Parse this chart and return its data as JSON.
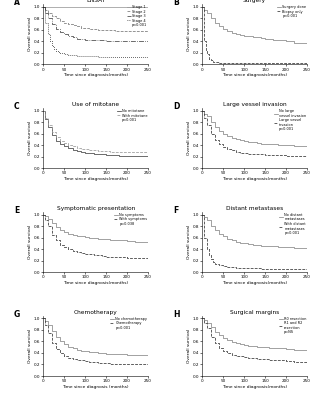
{
  "panels": [
    {
      "label": "A",
      "title": "ENSAT",
      "curves": [
        {
          "label": "Stage 1",
          "color": "#999999",
          "linestyle": "-",
          "x": [
            0,
            5,
            10,
            15,
            20,
            30,
            40,
            50,
            60,
            80,
            100,
            120,
            140,
            160,
            180,
            200,
            220,
            240,
            250
          ],
          "y": [
            1.0,
            1.0,
            1.0,
            1.0,
            1.0,
            1.0,
            1.0,
            1.0,
            1.0,
            1.0,
            1.0,
            1.0,
            1.0,
            1.0,
            1.0,
            1.0,
            1.0,
            1.0,
            1.0
          ]
        },
        {
          "label": "Stage 2",
          "color": "#777777",
          "linestyle": "--",
          "x": [
            0,
            5,
            10,
            20,
            30,
            40,
            50,
            60,
            70,
            80,
            90,
            100,
            110,
            120,
            130,
            140,
            150,
            160,
            170,
            180,
            200,
            220,
            240,
            250
          ],
          "y": [
            1.0,
            0.95,
            0.9,
            0.85,
            0.8,
            0.75,
            0.72,
            0.7,
            0.68,
            0.66,
            0.64,
            0.63,
            0.62,
            0.61,
            0.6,
            0.6,
            0.59,
            0.59,
            0.58,
            0.58,
            0.58,
            0.58,
            0.58,
            0.58
          ]
        },
        {
          "label": "Stage 3",
          "color": "#444444",
          "linestyle": "-.",
          "x": [
            0,
            5,
            10,
            20,
            30,
            40,
            50,
            60,
            70,
            80,
            90,
            100,
            110,
            120,
            130,
            140,
            150,
            160,
            170,
            180,
            200,
            220,
            240,
            250
          ],
          "y": [
            1.0,
            0.9,
            0.8,
            0.7,
            0.62,
            0.56,
            0.52,
            0.49,
            0.47,
            0.45,
            0.44,
            0.43,
            0.42,
            0.42,
            0.42,
            0.42,
            0.41,
            0.41,
            0.41,
            0.41,
            0.41,
            0.41,
            0.41,
            0.41
          ]
        },
        {
          "label": "Stage 4",
          "color": "#111111",
          "linestyle": ":",
          "x": [
            0,
            5,
            10,
            15,
            20,
            25,
            30,
            35,
            40,
            50,
            60,
            70,
            80,
            90,
            100,
            110,
            120,
            130,
            140,
            150,
            160,
            180,
            200,
            220,
            250
          ],
          "y": [
            1.0,
            0.72,
            0.52,
            0.4,
            0.32,
            0.27,
            0.24,
            0.22,
            0.2,
            0.18,
            0.17,
            0.16,
            0.15,
            0.15,
            0.14,
            0.14,
            0.14,
            0.13,
            0.13,
            0.13,
            0.13,
            0.13,
            0.13,
            0.13,
            0.13
          ]
        }
      ],
      "pval": "p<0.001",
      "xlabel": "Time since diagnosis(months)",
      "ylabel": "Overall survival"
    },
    {
      "label": "B",
      "title": "Surgery",
      "curves": [
        {
          "label": "Surgery done",
          "color": "#888888",
          "linestyle": "-",
          "x": [
            0,
            5,
            10,
            20,
            30,
            40,
            50,
            60,
            70,
            80,
            90,
            100,
            110,
            120,
            130,
            140,
            150,
            160,
            170,
            180,
            200,
            220,
            240,
            250
          ],
          "y": [
            1.0,
            0.95,
            0.9,
            0.8,
            0.72,
            0.66,
            0.62,
            0.58,
            0.55,
            0.53,
            0.51,
            0.5,
            0.49,
            0.48,
            0.47,
            0.46,
            0.45,
            0.44,
            0.43,
            0.42,
            0.4,
            0.38,
            0.38,
            0.38
          ]
        },
        {
          "label": "Biopsy only",
          "color": "#333333",
          "linestyle": "--",
          "x": [
            0,
            3,
            5,
            8,
            10,
            15,
            20,
            25,
            30,
            40,
            50,
            250
          ],
          "y": [
            1.0,
            0.6,
            0.4,
            0.25,
            0.18,
            0.1,
            0.07,
            0.05,
            0.04,
            0.03,
            0.02,
            0.02
          ]
        }
      ],
      "pval": "p<0.001",
      "xlabel": "Time since diagnosis(months)",
      "ylabel": "Overall survival"
    },
    {
      "label": "C",
      "title": "Use of mitotane",
      "curves": [
        {
          "label": "No mitotane",
          "color": "#444444",
          "linestyle": "-",
          "x": [
            0,
            5,
            10,
            20,
            30,
            40,
            50,
            60,
            70,
            80,
            90,
            100,
            110,
            120,
            130,
            140,
            150,
            160,
            170,
            180,
            200,
            220,
            250
          ],
          "y": [
            1.0,
            0.85,
            0.72,
            0.58,
            0.48,
            0.42,
            0.38,
            0.35,
            0.32,
            0.3,
            0.28,
            0.27,
            0.26,
            0.25,
            0.24,
            0.24,
            0.23,
            0.23,
            0.23,
            0.22,
            0.22,
            0.22,
            0.22
          ]
        },
        {
          "label": "With mitotane",
          "color": "#999999",
          "linestyle": "--",
          "x": [
            0,
            5,
            10,
            20,
            30,
            40,
            50,
            60,
            70,
            80,
            90,
            100,
            110,
            120,
            130,
            140,
            150,
            160,
            170,
            180,
            200,
            220,
            250
          ],
          "y": [
            1.0,
            0.88,
            0.76,
            0.63,
            0.54,
            0.48,
            0.44,
            0.4,
            0.38,
            0.36,
            0.34,
            0.33,
            0.32,
            0.31,
            0.3,
            0.3,
            0.3,
            0.29,
            0.29,
            0.29,
            0.29,
            0.29,
            0.29
          ]
        }
      ],
      "pval": "p<0.001",
      "xlabel": "Time since diagnosis(months)",
      "ylabel": "Overall survival"
    },
    {
      "label": "D",
      "title": "Large vessel invasion",
      "curves": [
        {
          "label": "No large\nvessel invasion",
          "color": "#888888",
          "linestyle": "-",
          "x": [
            0,
            5,
            10,
            20,
            30,
            40,
            50,
            60,
            70,
            80,
            90,
            100,
            110,
            120,
            130,
            140,
            150,
            160,
            180,
            200,
            220,
            250
          ],
          "y": [
            1.0,
            0.95,
            0.9,
            0.8,
            0.72,
            0.65,
            0.6,
            0.56,
            0.53,
            0.51,
            0.49,
            0.47,
            0.46,
            0.45,
            0.44,
            0.43,
            0.43,
            0.42,
            0.41,
            0.4,
            0.39,
            0.38
          ]
        },
        {
          "label": "Large vessel\ninvasion",
          "color": "#333333",
          "linestyle": "--",
          "x": [
            0,
            5,
            10,
            20,
            30,
            40,
            50,
            60,
            70,
            80,
            90,
            100,
            110,
            120,
            130,
            140,
            150,
            160,
            180,
            200,
            220,
            250
          ],
          "y": [
            1.0,
            0.88,
            0.75,
            0.6,
            0.5,
            0.42,
            0.37,
            0.34,
            0.31,
            0.29,
            0.27,
            0.26,
            0.25,
            0.24,
            0.24,
            0.24,
            0.23,
            0.23,
            0.23,
            0.22,
            0.22,
            0.22
          ]
        }
      ],
      "pval": "p<0.001",
      "xlabel": "Time since diagnosis(months)",
      "ylabel": "Overall survival"
    },
    {
      "label": "E",
      "title": "Symptomatic presentation",
      "curves": [
        {
          "label": "No symptoms",
          "color": "#888888",
          "linestyle": "-",
          "x": [
            0,
            5,
            10,
            20,
            30,
            40,
            50,
            60,
            70,
            80,
            90,
            100,
            110,
            120,
            130,
            140,
            150,
            160,
            180,
            200,
            220,
            250
          ],
          "y": [
            1.0,
            0.97,
            0.93,
            0.86,
            0.79,
            0.74,
            0.7,
            0.67,
            0.65,
            0.63,
            0.62,
            0.61,
            0.6,
            0.59,
            0.58,
            0.57,
            0.57,
            0.56,
            0.55,
            0.54,
            0.53,
            0.52
          ]
        },
        {
          "label": "With symptoms",
          "color": "#333333",
          "linestyle": "--",
          "x": [
            0,
            5,
            10,
            20,
            30,
            40,
            50,
            60,
            70,
            80,
            90,
            100,
            110,
            120,
            130,
            140,
            150,
            160,
            180,
            200,
            220,
            250
          ],
          "y": [
            1.0,
            0.9,
            0.8,
            0.65,
            0.55,
            0.48,
            0.43,
            0.4,
            0.37,
            0.35,
            0.33,
            0.32,
            0.31,
            0.3,
            0.29,
            0.28,
            0.27,
            0.27,
            0.26,
            0.25,
            0.24,
            0.23
          ]
        }
      ],
      "pval": "p=0.038",
      "xlabel": "Time since diagnosis(months)",
      "ylabel": "Overall survival"
    },
    {
      "label": "F",
      "title": "Distant metastases",
      "curves": [
        {
          "label": "No distant\nmetastases",
          "color": "#888888",
          "linestyle": "-",
          "x": [
            0,
            5,
            10,
            20,
            30,
            40,
            50,
            60,
            70,
            80,
            90,
            100,
            110,
            120,
            130,
            140,
            150,
            160,
            180,
            200,
            220,
            250
          ],
          "y": [
            1.0,
            0.95,
            0.9,
            0.81,
            0.73,
            0.67,
            0.62,
            0.58,
            0.55,
            0.53,
            0.51,
            0.5,
            0.49,
            0.48,
            0.47,
            0.46,
            0.46,
            0.45,
            0.44,
            0.43,
            0.42,
            0.41
          ]
        },
        {
          "label": "With distant\nmetastases",
          "color": "#333333",
          "linestyle": "--",
          "x": [
            0,
            3,
            5,
            10,
            15,
            20,
            25,
            30,
            40,
            50,
            60,
            80,
            100,
            120,
            140,
            160,
            180,
            200,
            250
          ],
          "y": [
            1.0,
            0.75,
            0.6,
            0.4,
            0.3,
            0.22,
            0.18,
            0.15,
            0.12,
            0.1,
            0.09,
            0.08,
            0.07,
            0.07,
            0.06,
            0.06,
            0.06,
            0.06,
            0.06
          ]
        }
      ],
      "pval": "p<0.001",
      "xlabel": "Time since diagnosis(months)",
      "ylabel": "Overall survival"
    },
    {
      "label": "G",
      "title": "Chemotherapy",
      "curves": [
        {
          "label": "No chemotherapy",
          "color": "#888888",
          "linestyle": "-",
          "x": [
            0,
            5,
            10,
            20,
            30,
            40,
            50,
            60,
            70,
            80,
            90,
            100,
            110,
            120,
            130,
            140,
            150,
            160,
            180,
            200,
            220,
            250
          ],
          "y": [
            1.0,
            0.95,
            0.88,
            0.78,
            0.68,
            0.6,
            0.55,
            0.51,
            0.48,
            0.46,
            0.44,
            0.43,
            0.42,
            0.41,
            0.4,
            0.4,
            0.39,
            0.38,
            0.38,
            0.37,
            0.36,
            0.36
          ]
        },
        {
          "label": "Chemotherapy",
          "color": "#333333",
          "linestyle": "--",
          "x": [
            0,
            5,
            10,
            20,
            30,
            40,
            50,
            60,
            70,
            80,
            90,
            100,
            110,
            120,
            130,
            140,
            150,
            160,
            180,
            200,
            220,
            250
          ],
          "y": [
            1.0,
            0.88,
            0.75,
            0.58,
            0.47,
            0.4,
            0.35,
            0.32,
            0.3,
            0.28,
            0.27,
            0.26,
            0.25,
            0.24,
            0.23,
            0.22,
            0.22,
            0.21,
            0.21,
            0.2,
            0.2,
            0.2
          ]
        }
      ],
      "pval": "p<0.001",
      "xlabel": "Time since diagnosis (months)",
      "ylabel": "Overall survival"
    },
    {
      "label": "H",
      "title": "Surgical margins",
      "curves": [
        {
          "label": "R0 resection",
          "color": "#888888",
          "linestyle": "-",
          "x": [
            0,
            5,
            10,
            20,
            30,
            40,
            50,
            60,
            70,
            80,
            90,
            100,
            110,
            120,
            130,
            140,
            150,
            160,
            180,
            200,
            220,
            250
          ],
          "y": [
            1.0,
            0.97,
            0.93,
            0.85,
            0.77,
            0.71,
            0.66,
            0.62,
            0.59,
            0.57,
            0.55,
            0.54,
            0.53,
            0.52,
            0.51,
            0.5,
            0.5,
            0.49,
            0.48,
            0.47,
            0.46,
            0.45
          ]
        },
        {
          "label": "R1 and R2\nresection",
          "color": "#333333",
          "linestyle": "--",
          "x": [
            0,
            5,
            10,
            20,
            30,
            40,
            50,
            60,
            70,
            80,
            90,
            100,
            110,
            120,
            130,
            140,
            150,
            160,
            180,
            200,
            220,
            250
          ],
          "y": [
            1.0,
            0.92,
            0.83,
            0.68,
            0.57,
            0.49,
            0.44,
            0.4,
            0.37,
            0.35,
            0.34,
            0.33,
            0.32,
            0.31,
            0.3,
            0.29,
            0.29,
            0.28,
            0.27,
            0.26,
            0.25,
            0.24
          ]
        }
      ],
      "pval": "p=NS",
      "xlabel": "Time since diagnosis(months)",
      "ylabel": "Overall survival"
    }
  ]
}
